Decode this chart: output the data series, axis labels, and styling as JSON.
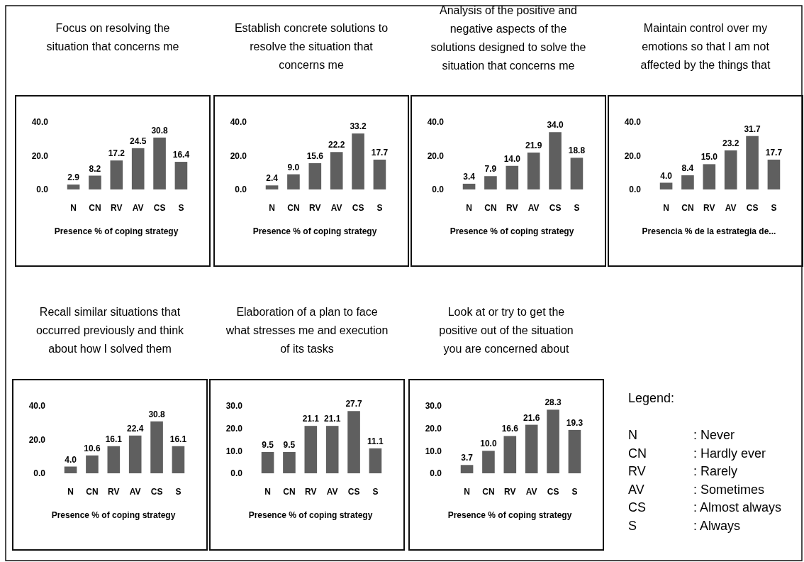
{
  "chart_data": [
    {
      "type": "bar",
      "title": "Focus on resolving the situation that concerns me",
      "xlabel": "Presence % of coping strategy",
      "categories": [
        "N",
        "CN",
        "RV",
        "AV",
        "CS",
        "S"
      ],
      "values": [
        2.9,
        8.2,
        17.2,
        24.5,
        30.8,
        16.4
      ],
      "value_labels": [
        "2.9",
        "8.2",
        "17.2",
        "24.5",
        "30.8",
        "16.4"
      ],
      "color": "#5f5f5f",
      "ylim": [
        0,
        40
      ],
      "yticks": [
        {
          "value": 0,
          "label": "0.0"
        },
        {
          "value": 20,
          "label": "20.0"
        },
        {
          "value": 40,
          "label": "40.0"
        }
      ]
    },
    {
      "type": "bar",
      "title": "Establish concrete solutions to resolve the situation that concerns me",
      "xlabel": "Presence % of coping strategy",
      "categories": [
        "N",
        "CN",
        "RV",
        "AV",
        "CS",
        "S"
      ],
      "values": [
        2.4,
        9.0,
        15.6,
        22.2,
        33.2,
        17.7
      ],
      "value_labels": [
        "2.4",
        "9.0",
        "15.6",
        "22.2",
        "33.2",
        "17.7"
      ],
      "color": "#5f5f5f",
      "ylim": [
        0,
        40
      ],
      "yticks": [
        {
          "value": 0,
          "label": "0.0"
        },
        {
          "value": 20,
          "label": "20.0"
        },
        {
          "value": 40,
          "label": "40.0"
        }
      ]
    },
    {
      "type": "bar",
      "title": "Analysis of the positive and negative aspects of the solutions designed to solve the situation that concerns me",
      "xlabel": "Presence % of coping strategy",
      "categories": [
        "N",
        "CN",
        "RV",
        "AV",
        "CS",
        "S"
      ],
      "values": [
        3.4,
        7.9,
        14.0,
        21.9,
        34.0,
        18.8
      ],
      "value_labels": [
        "3.4",
        "7.9",
        "14.0",
        "21.9",
        "34.0",
        "18.8"
      ],
      "color": "#5f5f5f",
      "ylim": [
        0,
        40
      ],
      "yticks": [
        {
          "value": 0,
          "label": "0.0"
        },
        {
          "value": 20,
          "label": "20.0"
        },
        {
          "value": 40,
          "label": "40.0"
        }
      ]
    },
    {
      "type": "bar",
      "title": "Maintain control over my emotions so that I am not affected by the things that",
      "xlabel": "Presencia % de la estrategia de...",
      "categories": [
        "N",
        "CN",
        "RV",
        "AV",
        "CS",
        "S"
      ],
      "values": [
        4.0,
        8.4,
        15.0,
        23.2,
        31.7,
        17.7
      ],
      "value_labels": [
        "4.0",
        "8.4",
        "15.0",
        "23.2",
        "31.7",
        "17.7"
      ],
      "color": "#5f5f5f",
      "ylim": [
        0,
        40
      ],
      "yticks": [
        {
          "value": 0,
          "label": "0.0"
        },
        {
          "value": 20,
          "label": "20.0"
        },
        {
          "value": 40,
          "label": "40.0"
        }
      ]
    },
    {
      "type": "bar",
      "title": "Recall similar situations that occurred previously and think about how I solved them",
      "xlabel": "Presence % of coping strategy",
      "categories": [
        "N",
        "CN",
        "RV",
        "AV",
        "CS",
        "S"
      ],
      "values": [
        4.0,
        10.6,
        16.1,
        22.4,
        30.8,
        16.1
      ],
      "value_labels": [
        "4.0",
        "10.6",
        "16.1",
        "22.4",
        "30.8",
        "16.1"
      ],
      "color": "#5f5f5f",
      "ylim": [
        0,
        40
      ],
      "yticks": [
        {
          "value": 0,
          "label": "0.0"
        },
        {
          "value": 20,
          "label": "20.0"
        },
        {
          "value": 40,
          "label": "40.0"
        }
      ]
    },
    {
      "type": "bar",
      "title": "Elaboration of a plan to face what stresses me and execution of its tasks",
      "xlabel": "Presence % of coping strategy",
      "categories": [
        "N",
        "CN",
        "RV",
        "AV",
        "CS",
        "S"
      ],
      "values": [
        9.5,
        9.5,
        21.1,
        21.1,
        27.7,
        11.1
      ],
      "value_labels": [
        "9.5",
        "9.5",
        "21.1",
        "21.1",
        "27.7",
        "11.1"
      ],
      "color": "#5f5f5f",
      "ylim": [
        0,
        30
      ],
      "yticks": [
        {
          "value": 0,
          "label": "0.0"
        },
        {
          "value": 10,
          "label": "10.0"
        },
        {
          "value": 20,
          "label": "20.0"
        },
        {
          "value": 30,
          "label": "30.0"
        }
      ]
    },
    {
      "type": "bar",
      "title": "Look at or try to get the positive out of the situation you are concerned about",
      "xlabel": "Presence % of coping strategy",
      "categories": [
        "N",
        "CN",
        "RV",
        "AV",
        "CS",
        "S"
      ],
      "values": [
        3.7,
        10.0,
        16.6,
        21.6,
        28.3,
        19.3
      ],
      "value_labels": [
        "3.7",
        "10.0",
        "16.6",
        "21.6",
        "28.3",
        "19.3"
      ],
      "color": "#5f5f5f",
      "ylim": [
        0,
        30
      ],
      "yticks": [
        {
          "value": 0,
          "label": "0.0"
        },
        {
          "value": 10,
          "label": "10.0"
        },
        {
          "value": 20,
          "label": "20.0"
        },
        {
          "value": 30,
          "label": "30.0"
        }
      ]
    },
    {
      "type": "other",
      "title": "Legend:",
      "annotations": [
        "N",
        ": Never",
        "CN",
        ": Hardly ever",
        "RV",
        ": Rarely",
        "AV",
        ": Sometimes",
        "CS",
        ": Almost always",
        "S",
        ": Always"
      ]
    }
  ]
}
